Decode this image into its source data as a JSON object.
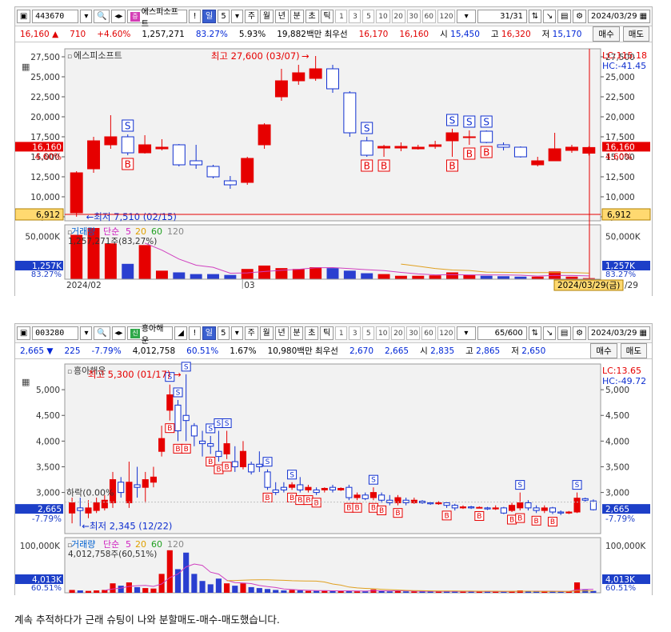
{
  "panel1": {
    "code": "443670",
    "name": "에스피소프트",
    "period": "일",
    "period_n": "5",
    "tabs": [
      "주",
      "월",
      "년",
      "분",
      "초",
      "틱"
    ],
    "intervals": [
      "1",
      "3",
      "5",
      "10",
      "20",
      "30",
      "60",
      "120"
    ],
    "counter": "31",
    "counter_total": "/31",
    "date": "2024/03/29",
    "quote": {
      "price": "16,160",
      "arrow": "▲",
      "change": "710",
      "pct": "+4.60%",
      "volume": "1,257,271",
      "vol_pct": "83.27%",
      "turnover": "5.93%",
      "amount": "19,882백만",
      "pref_label": "최우선",
      "bid": "16,170",
      "ask": "16,160",
      "open_label": "시",
      "open": "15,450",
      "high_label": "고",
      "high": "16,320",
      "low_label": "저",
      "low": "15,170",
      "buy": "매수",
      "sell": "매도"
    },
    "chart_title": "에스피소프트",
    "lc": "LC:115.18",
    "hc": "HC:-41.45",
    "max_label": "최고 27,600 (03/07)",
    "min_label": "←최저 7,510 (02/15)",
    "cur_price": "16,160",
    "cur_pct": "4.60%",
    "hline_value": "6,912",
    "y_ticks": [
      "27,500",
      "25,000",
      "22,500",
      "20,000",
      "17,500",
      "15,000",
      "12,500",
      "10,000",
      "7,500"
    ],
    "vol_title": [
      "거래량",
      "단순",
      "5",
      "20",
      "60",
      "120"
    ],
    "vol_sub": "1,257,271주(83,27%)",
    "vol_tick": "50,000K",
    "vol_cur": "1,257K",
    "vol_pct": "83.27%",
    "x_labels": [
      "2024/02",
      "03"
    ],
    "cursor_date": "2024/03/29(금)",
    "cursor_right": "/29",
    "candles": [
      {
        "o": 8000,
        "c": 13000,
        "h": 13200,
        "l": 7510,
        "v": 52000
      },
      {
        "o": 13500,
        "c": 17000,
        "h": 17500,
        "l": 13000,
        "v": 60000
      },
      {
        "o": 16500,
        "c": 17500,
        "h": 20200,
        "l": 16000,
        "v": 42000
      },
      {
        "o": 17500,
        "c": 15500,
        "h": 17800,
        "l": 15200,
        "v": 18000
      },
      {
        "o": 15500,
        "c": 16500,
        "h": 17700,
        "l": 15400,
        "v": 40000
      },
      {
        "o": 16000,
        "c": 16200,
        "h": 17200,
        "l": 15800,
        "v": 10000
      },
      {
        "o": 16500,
        "c": 14000,
        "h": 16600,
        "l": 13800,
        "v": 8000
      },
      {
        "o": 14500,
        "c": 14000,
        "h": 16500,
        "l": 13500,
        "v": 6000
      },
      {
        "o": 13800,
        "c": 12500,
        "h": 14000,
        "l": 12300,
        "v": 6000
      },
      {
        "o": 12000,
        "c": 11500,
        "h": 12600,
        "l": 11000,
        "v": 5000
      },
      {
        "o": 11800,
        "c": 14800,
        "h": 15000,
        "l": 11500,
        "v": 12000
      },
      {
        "o": 16500,
        "c": 19000,
        "h": 19200,
        "l": 16000,
        "v": 16000
      },
      {
        "o": 22500,
        "c": 24500,
        "h": 26000,
        "l": 22000,
        "v": 13000
      },
      {
        "o": 24500,
        "c": 25500,
        "h": 26500,
        "l": 24000,
        "v": 12000
      },
      {
        "o": 24800,
        "c": 26000,
        "h": 27600,
        "l": 24500,
        "v": 14000
      },
      {
        "o": 26000,
        "c": 23500,
        "h": 26500,
        "l": 23000,
        "v": 13000
      },
      {
        "o": 23000,
        "c": 18000,
        "h": 23200,
        "l": 17500,
        "v": 10000
      },
      {
        "o": 17000,
        "c": 15200,
        "h": 17500,
        "l": 15000,
        "v": 7000
      },
      {
        "o": 16100,
        "c": 16300,
        "h": 16500,
        "l": 15000,
        "v": 6000
      },
      {
        "o": 16100,
        "c": 16300,
        "h": 16800,
        "l": 15700,
        "v": 4000
      },
      {
        "o": 16000,
        "c": 16200,
        "h": 16500,
        "l": 15900,
        "v": 4000
      },
      {
        "o": 16300,
        "c": 16500,
        "h": 17000,
        "l": 16000,
        "v": 4500
      },
      {
        "o": 17000,
        "c": 18000,
        "h": 18500,
        "l": 15000,
        "v": 8000
      },
      {
        "o": 17500,
        "c": 17500,
        "h": 18300,
        "l": 16500,
        "v": 5000
      },
      {
        "o": 18200,
        "c": 16800,
        "h": 18300,
        "l": 16700,
        "v": 4000
      },
      {
        "o": 16500,
        "c": 16200,
        "h": 16800,
        "l": 15800,
        "v": 3500
      },
      {
        "o": 16200,
        "c": 15000,
        "h": 16300,
        "l": 14900,
        "v": 3000
      },
      {
        "o": 14000,
        "c": 14500,
        "h": 15000,
        "l": 13800,
        "v": 3000
      },
      {
        "o": 14500,
        "c": 16000,
        "h": 18000,
        "l": 14500,
        "v": 9000
      },
      {
        "o": 15800,
        "c": 16200,
        "h": 16500,
        "l": 15500,
        "v": 3000
      },
      {
        "o": 15450,
        "c": 16160,
        "h": 16320,
        "l": 15170,
        "v": 1257
      }
    ],
    "signals": [
      {
        "i": 3,
        "t": "S"
      },
      {
        "i": 3,
        "t": "B"
      },
      {
        "i": 17,
        "t": "S"
      },
      {
        "i": 17,
        "t": "B"
      },
      {
        "i": 18,
        "t": "B"
      },
      {
        "i": 22,
        "t": "S"
      },
      {
        "i": 22,
        "t": "B"
      },
      {
        "i": 23,
        "t": "S"
      },
      {
        "i": 23,
        "t": "B"
      },
      {
        "i": 24,
        "t": "S"
      },
      {
        "i": 24,
        "t": "B"
      }
    ]
  },
  "panel2": {
    "code": "003280",
    "name": "흥아해운",
    "period": "일",
    "period_n": "5",
    "tabs": [
      "주",
      "월",
      "년",
      "분",
      "초",
      "틱"
    ],
    "intervals": [
      "1",
      "3",
      "5",
      "10",
      "20",
      "30",
      "60",
      "120"
    ],
    "counter": "65",
    "counter_total": "/600",
    "date": "2024/03/29",
    "quote": {
      "price": "2,665",
      "arrow": "▼",
      "change": "225",
      "pct": "-7.79%",
      "volume": "4,012,758",
      "vol_pct": "60.51%",
      "turnover": "1.67%",
      "amount": "10,980백만",
      "pref_label": "최우선",
      "bid": "2,670",
      "ask": "2,665",
      "open_label": "시",
      "open": "2,835",
      "high_label": "고",
      "high": "2,865",
      "low_label": "저",
      "low": "2,650",
      "buy": "매수",
      "sell": "매도"
    },
    "chart_title": "흥아해운",
    "lc": "LC:13.65",
    "hc": "HC:-49.72",
    "max_label": "최고 5,300 (01/17) →",
    "min_label": "←최저 2,345 (12/22)",
    "cur_price": "2,665",
    "cur_pct": "-7.79%",
    "fall_label": "하락(0.00%",
    "y_ticks": [
      "5,000",
      "4,500",
      "4,000",
      "3,500",
      "3,000"
    ],
    "vol_title": [
      "거래량",
      "단순",
      "5",
      "20",
      "60",
      "120"
    ],
    "vol_sub": "4,012,758주(60,51%)",
    "vol_tick": "100,000K",
    "vol_cur": "4,013K",
    "vol_pct": "60.51%",
    "candles": [
      {
        "o": 2600,
        "c": 2800,
        "h": 2900,
        "l": 2400,
        "v": 6000
      },
      {
        "o": 2700,
        "c": 2650,
        "h": 2900,
        "l": 2345,
        "v": 5000
      },
      {
        "o": 2600,
        "c": 2700,
        "h": 2850,
        "l": 2500,
        "v": 4000
      },
      {
        "o": 2650,
        "c": 2800,
        "h": 2900,
        "l": 2600,
        "v": 5000
      },
      {
        "o": 2700,
        "c": 2850,
        "h": 2950,
        "l": 2650,
        "v": 6000
      },
      {
        "o": 2800,
        "c": 3250,
        "h": 3400,
        "l": 2700,
        "v": 20000
      },
      {
        "o": 3200,
        "c": 3000,
        "h": 3300,
        "l": 2900,
        "v": 15000
      },
      {
        "o": 2800,
        "c": 3200,
        "h": 3600,
        "l": 2700,
        "v": 22000
      },
      {
        "o": 3150,
        "c": 3100,
        "h": 3500,
        "l": 2900,
        "v": 12000
      },
      {
        "o": 3100,
        "c": 3250,
        "h": 3400,
        "l": 2800,
        "v": 10000
      },
      {
        "o": 3200,
        "c": 3300,
        "h": 3500,
        "l": 3100,
        "v": 9000
      },
      {
        "o": 3800,
        "c": 4050,
        "h": 4300,
        "l": 3700,
        "v": 40000
      },
      {
        "o": 4600,
        "c": 4900,
        "h": 5100,
        "l": 4400,
        "v": 90000
      },
      {
        "o": 4700,
        "c": 4200,
        "h": 4800,
        "l": 4000,
        "v": 50000
      },
      {
        "o": 4500,
        "c": 4400,
        "h": 5300,
        "l": 4000,
        "v": 85000
      },
      {
        "o": 4300,
        "c": 4100,
        "h": 4350,
        "l": 3900,
        "v": 40000
      },
      {
        "o": 4000,
        "c": 3950,
        "h": 4200,
        "l": 3700,
        "v": 25000
      },
      {
        "o": 3950,
        "c": 3900,
        "h": 4100,
        "l": 3750,
        "v": 18000
      },
      {
        "o": 3800,
        "c": 3700,
        "h": 4200,
        "l": 3600,
        "v": 30000
      },
      {
        "o": 3750,
        "c": 3950,
        "h": 4200,
        "l": 3650,
        "v": 20000
      },
      {
        "o": 3600,
        "c": 3500,
        "h": 3900,
        "l": 3400,
        "v": 15000
      },
      {
        "o": 3500,
        "c": 3800,
        "h": 4000,
        "l": 3450,
        "v": 20000
      },
      {
        "o": 3550,
        "c": 3400,
        "h": 3600,
        "l": 3350,
        "v": 12000
      },
      {
        "o": 3550,
        "c": 3500,
        "h": 3800,
        "l": 3400,
        "v": 10000
      },
      {
        "o": 3400,
        "c": 3100,
        "h": 3450,
        "l": 3050,
        "v": 8000
      },
      {
        "o": 3050,
        "c": 3000,
        "h": 3200,
        "l": 2950,
        "v": 6000
      },
      {
        "o": 3100,
        "c": 3050,
        "h": 3200,
        "l": 3000,
        "v": 5000
      },
      {
        "o": 3100,
        "c": 3150,
        "h": 3200,
        "l": 3050,
        "v": 6000
      },
      {
        "o": 3150,
        "c": 3050,
        "h": 3300,
        "l": 3000,
        "v": 5000
      },
      {
        "o": 3050,
        "c": 3100,
        "h": 3150,
        "l": 3000,
        "v": 4000
      },
      {
        "o": 3050,
        "c": 3000,
        "h": 3100,
        "l": 2950,
        "v": 4000
      },
      {
        "o": 3050,
        "c": 3080,
        "h": 3100,
        "l": 3000,
        "v": 4000
      },
      {
        "o": 3100,
        "c": 3050,
        "h": 3150,
        "l": 3000,
        "v": 4000
      },
      {
        "o": 3050,
        "c": 3080,
        "h": 3100,
        "l": 3030,
        "v": 4000
      },
      {
        "o": 3100,
        "c": 2900,
        "h": 3150,
        "l": 2850,
        "v": 4000
      },
      {
        "o": 2900,
        "c": 2950,
        "h": 3000,
        "l": 2850,
        "v": 3000
      },
      {
        "o": 2950,
        "c": 2880,
        "h": 3000,
        "l": 2850,
        "v": 3000
      },
      {
        "o": 2900,
        "c": 3000,
        "h": 3100,
        "l": 2850,
        "v": 7000
      },
      {
        "o": 2950,
        "c": 2850,
        "h": 3000,
        "l": 2800,
        "v": 4000
      },
      {
        "o": 2850,
        "c": 2800,
        "h": 2950,
        "l": 2750,
        "v": 3000
      },
      {
        "o": 2800,
        "c": 2900,
        "h": 2950,
        "l": 2750,
        "v": 4000
      },
      {
        "o": 2850,
        "c": 2800,
        "h": 2900,
        "l": 2750,
        "v": 3000
      },
      {
        "o": 2800,
        "c": 2850,
        "h": 2900,
        "l": 2780,
        "v": 3000
      },
      {
        "o": 2830,
        "c": 2800,
        "h": 2850,
        "l": 2780,
        "v": 3000
      },
      {
        "o": 2800,
        "c": 2780,
        "h": 2820,
        "l": 2760,
        "v": 3000
      },
      {
        "o": 2780,
        "c": 2800,
        "h": 2830,
        "l": 2760,
        "v": 3000
      },
      {
        "o": 2800,
        "c": 2750,
        "h": 2820,
        "l": 2700,
        "v": 3000
      },
      {
        "o": 2750,
        "c": 2700,
        "h": 2780,
        "l": 2650,
        "v": 3000
      },
      {
        "o": 2700,
        "c": 2720,
        "h": 2750,
        "l": 2680,
        "v": 3000
      },
      {
        "o": 2720,
        "c": 2700,
        "h": 2740,
        "l": 2680,
        "v": 2500
      },
      {
        "o": 2700,
        "c": 2710,
        "h": 2730,
        "l": 2690,
        "v": 2500
      },
      {
        "o": 2700,
        "c": 2680,
        "h": 2720,
        "l": 2660,
        "v": 2500
      },
      {
        "o": 2680,
        "c": 2700,
        "h": 2750,
        "l": 2660,
        "v": 3000
      },
      {
        "o": 2700,
        "c": 2600,
        "h": 2720,
        "l": 2580,
        "v": 3000
      },
      {
        "o": 2650,
        "c": 2750,
        "h": 2800,
        "l": 2620,
        "v": 3000
      },
      {
        "o": 2700,
        "c": 2800,
        "h": 3000,
        "l": 2650,
        "v": 5000
      },
      {
        "o": 2800,
        "c": 2700,
        "h": 2850,
        "l": 2650,
        "v": 3000
      },
      {
        "o": 2700,
        "c": 2650,
        "h": 2750,
        "l": 2600,
        "v": 3000
      },
      {
        "o": 2650,
        "c": 2700,
        "h": 2750,
        "l": 2600,
        "v": 3000
      },
      {
        "o": 2700,
        "c": 2620,
        "h": 2720,
        "l": 2580,
        "v": 3000
      },
      {
        "o": 2620,
        "c": 2600,
        "h": 2650,
        "l": 2560,
        "v": 2500
      },
      {
        "o": 2600,
        "c": 2620,
        "h": 2640,
        "l": 2580,
        "v": 2500
      },
      {
        "o": 2620,
        "c": 2890,
        "h": 3000,
        "l": 2600,
        "v": 22000
      },
      {
        "o": 2880,
        "c": 2850,
        "h": 2900,
        "l": 2820,
        "v": 6000
      },
      {
        "o": 2835,
        "c": 2665,
        "h": 2865,
        "l": 2650,
        "v": 4013
      }
    ],
    "signals": [
      {
        "i": 12,
        "t": "S"
      },
      {
        "i": 12,
        "t": "B"
      },
      {
        "i": 13,
        "t": "S"
      },
      {
        "i": 13,
        "t": "B"
      },
      {
        "i": 14,
        "t": "S"
      },
      {
        "i": 14,
        "t": "B"
      },
      {
        "i": 17,
        "t": "S"
      },
      {
        "i": 17,
        "t": "B"
      },
      {
        "i": 18,
        "t": "S"
      },
      {
        "i": 18,
        "t": "B"
      },
      {
        "i": 19,
        "t": "S"
      },
      {
        "i": 19,
        "t": "B"
      },
      {
        "i": 24,
        "t": "S"
      },
      {
        "i": 24,
        "t": "B"
      },
      {
        "i": 27,
        "t": "S"
      },
      {
        "i": 27,
        "t": "B"
      },
      {
        "i": 28,
        "t": "B"
      },
      {
        "i": 29,
        "t": "B"
      },
      {
        "i": 30,
        "t": "B"
      },
      {
        "i": 34,
        "t": "B"
      },
      {
        "i": 35,
        "t": "B"
      },
      {
        "i": 37,
        "t": "S"
      },
      {
        "i": 37,
        "t": "B"
      },
      {
        "i": 38,
        "t": "B"
      },
      {
        "i": 40,
        "t": "B"
      },
      {
        "i": 46,
        "t": "B"
      },
      {
        "i": 50,
        "t": "B"
      },
      {
        "i": 54,
        "t": "B"
      },
      {
        "i": 55,
        "t": "S"
      },
      {
        "i": 55,
        "t": "B"
      },
      {
        "i": 57,
        "t": "B"
      },
      {
        "i": 59,
        "t": "B"
      },
      {
        "i": 62,
        "t": "S"
      }
    ]
  },
  "caption": "계속 추적하다가 근래 슈팅이 나와 분할매도-매수-매도했습니다."
}
